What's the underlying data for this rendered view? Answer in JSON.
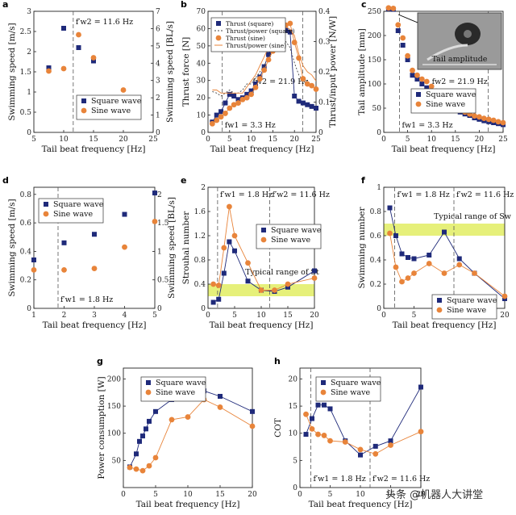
{
  "figure": {
    "watermark": "头条 @机器人大讲堂",
    "inset_label": "Tail amplitude"
  },
  "colors": {
    "square": "#1f2a7a",
    "sine": "#e8843a",
    "band": "#e6f07a",
    "axis": "#222222"
  },
  "chart_data": [
    {
      "panel": "a",
      "type": "scatter",
      "xlabel": "Tail beat frequency [Hz]",
      "ylabel": "Swimming speed [m/s]",
      "y2label": "Swimming speed [BL/s]",
      "xlim": [
        5,
        25
      ],
      "ylim": [
        0,
        3
      ],
      "y2lim": [
        0,
        7
      ],
      "xticks": [
        5,
        10,
        15,
        20,
        25
      ],
      "yticks": [
        0,
        0.5,
        1,
        1.5,
        2,
        2.5,
        3
      ],
      "y2ticks": [
        0,
        1,
        2,
        3,
        4,
        5,
        6,
        7
      ],
      "vlines": [
        {
          "x": 11.6,
          "label": "f′w2 = 11.6 Hz"
        }
      ],
      "legend": "bottom-right",
      "series": [
        {
          "name": "Square wave",
          "marker": "square",
          "x": [
            7.5,
            10,
            12.5,
            15,
            20
          ],
          "y": [
            1.6,
            2.58,
            2.1,
            1.77,
            0.7
          ]
        },
        {
          "name": "Sine wave",
          "marker": "circle",
          "x": [
            7.5,
            10,
            12.5,
            15,
            20
          ],
          "y": [
            1.52,
            1.58,
            2.42,
            1.85,
            1.05
          ]
        }
      ]
    },
    {
      "panel": "b",
      "type": "line",
      "xlabel": "Tail beat frequency [Hz]",
      "ylabel": "Thrust force [N]",
      "y2label": "Thrust/input power [N/W]",
      "xlim": [
        0,
        25
      ],
      "ylim": [
        0,
        70
      ],
      "y2lim": [
        0,
        0.4
      ],
      "xticks": [
        0,
        5,
        10,
        15,
        20,
        25
      ],
      "yticks": [
        0,
        10,
        20,
        30,
        40,
        50,
        60,
        70
      ],
      "y2ticks": [
        0,
        0.1,
        0.2,
        0.3,
        0.4
      ],
      "vlines": [
        {
          "x": 3.3,
          "label": "fw1 = 3.3 Hz"
        },
        {
          "x": 21.9,
          "label": "fw2 = 21.9 Hz"
        }
      ],
      "legend": "top-left",
      "series": [
        {
          "name": "Thrust (square)",
          "marker": "square",
          "x": [
            1,
            2,
            3,
            4,
            5,
            6,
            7,
            8,
            9,
            10,
            11,
            12,
            13,
            14,
            15,
            16,
            17,
            18,
            19,
            20,
            21,
            22,
            23,
            24,
            25
          ],
          "y": [
            6,
            10,
            12,
            17,
            22,
            21,
            19,
            20,
            22,
            24,
            28,
            32,
            38,
            45,
            50,
            53,
            56,
            59,
            58,
            21,
            18,
            17,
            16,
            15,
            14
          ]
        },
        {
          "name": "Thrust/power (square)",
          "marker": "none",
          "dash": "2,2",
          "axis": "right",
          "x": [
            1,
            2,
            3,
            4,
            5,
            6,
            7,
            8,
            9,
            10,
            11,
            12,
            13,
            14,
            15,
            16,
            17,
            18,
            19,
            20,
            21,
            22,
            23,
            24,
            25
          ],
          "y": [
            0.135,
            0.13,
            0.12,
            0.13,
            0.14,
            0.13,
            0.13,
            0.14,
            0.16,
            0.16,
            0.18,
            0.2,
            0.22,
            0.25,
            0.27,
            0.28,
            0.3,
            0.3,
            0.28,
            0.23,
            0.19,
            0.17,
            0.16,
            0.16,
            0.15
          ]
        },
        {
          "name": "Thrust (sine)",
          "marker": "circle",
          "x": [
            1,
            2,
            3,
            4,
            5,
            6,
            7,
            8,
            9,
            10,
            11,
            12,
            13,
            14,
            15,
            16,
            17,
            18,
            19,
            20,
            21,
            22,
            23,
            24,
            25
          ],
          "y": [
            5,
            7,
            9,
            11,
            14,
            16,
            17,
            19,
            20,
            22,
            26,
            31,
            36,
            42,
            47,
            54,
            58,
            62,
            63,
            52,
            43,
            31,
            28,
            27,
            25
          ]
        },
        {
          "name": "Thrust/power (sine)",
          "marker": "none",
          "dash": "",
          "axis": "right",
          "x": [
            1,
            2,
            3,
            4,
            5,
            6,
            7,
            8,
            9,
            10,
            11,
            12,
            13,
            14,
            15,
            16,
            17,
            18,
            19,
            20,
            21,
            22,
            23,
            24,
            25
          ],
          "y": [
            0.14,
            0.14,
            0.13,
            0.13,
            0.13,
            0.13,
            0.13,
            0.13,
            0.15,
            0.17,
            0.19,
            0.22,
            0.25,
            0.28,
            0.31,
            0.33,
            0.34,
            0.35,
            0.34,
            0.32,
            0.26,
            0.22,
            0.2,
            0.19,
            0.17
          ]
        }
      ]
    },
    {
      "panel": "c",
      "type": "scatter",
      "xlabel": "Tail beat frequency [Hz]",
      "ylabel": "Tail amplitude [mm]",
      "xlim": [
        0,
        25
      ],
      "ylim": [
        0,
        250
      ],
      "xticks": [
        0,
        5,
        10,
        15,
        20,
        25
      ],
      "yticks": [
        0,
        50,
        100,
        150,
        200,
        250
      ],
      "vlines": [
        {
          "x": 3.3,
          "label": "fw1 = 3.3 Hz"
        },
        {
          "x": 21.9,
          "label": "fw2 = 21.9 Hz"
        }
      ],
      "legend": "right",
      "series": [
        {
          "name": "Square wave",
          "marker": "square",
          "x": [
            1,
            2,
            3,
            4,
            5,
            6,
            7,
            8,
            9,
            10,
            11,
            12,
            13,
            14,
            15,
            16,
            17,
            18,
            19,
            20,
            21,
            22,
            23,
            24,
            25
          ],
          "y": [
            255,
            254,
            210,
            180,
            150,
            118,
            110,
            100,
            92,
            85,
            75,
            66,
            58,
            52,
            47,
            42,
            38,
            35,
            30,
            27,
            24,
            22,
            20,
            18,
            16
          ]
        },
        {
          "name": "Sine wave",
          "marker": "circle",
          "x": [
            1,
            2,
            3,
            4,
            5,
            6,
            7,
            8,
            9,
            10,
            11,
            12,
            13,
            14,
            15,
            16,
            17,
            18,
            19,
            20,
            21,
            22,
            23,
            24,
            25
          ],
          "y": [
            257,
            256,
            222,
            195,
            158,
            128,
            118,
            110,
            105,
            95,
            85,
            75,
            66,
            59,
            52,
            47,
            42,
            38,
            34,
            32,
            29,
            27,
            25,
            22,
            20
          ]
        }
      ]
    },
    {
      "panel": "d",
      "type": "scatter",
      "xlabel": "Tail beat frequency [Hz]",
      "ylabel": "Swimming speed [m/s]",
      "y2label": "Swimming speed [BL/s]",
      "xlim": [
        1,
        5
      ],
      "ylim": [
        0,
        0.85
      ],
      "y2lim": [
        0,
        2.125
      ],
      "xticks": [
        1,
        2,
        3,
        4,
        5
      ],
      "yticks": [
        0,
        0.2,
        0.4,
        0.6,
        0.8
      ],
      "y2ticks": [
        0,
        0.5,
        1.0,
        1.5,
        2.0
      ],
      "vlines": [
        {
          "x": 1.8,
          "label": "f′w1 = 1.8 Hz"
        }
      ],
      "legend": "top-left",
      "series": [
        {
          "name": "Square wave",
          "marker": "square",
          "x": [
            1,
            2,
            3,
            4,
            5
          ],
          "y": [
            0.34,
            0.46,
            0.52,
            0.66,
            0.81
          ]
        },
        {
          "name": "Sine wave",
          "marker": "circle",
          "x": [
            1,
            2,
            3,
            4,
            5
          ],
          "y": [
            0.27,
            0.27,
            0.28,
            0.43,
            0.61
          ]
        }
      ]
    },
    {
      "panel": "e",
      "type": "line",
      "xlabel": "Tail beat frequency [Hz]",
      "ylabel": "Strouhal number",
      "xlim": [
        0,
        20
      ],
      "ylim": [
        0,
        2.0
      ],
      "xticks": [
        0,
        5,
        10,
        15,
        20
      ],
      "yticks": [
        0,
        0.4,
        0.8,
        1.2,
        1.6,
        2.0
      ],
      "band": [
        0.2,
        0.4
      ],
      "band_label": "Typical range of St",
      "vlines": [
        {
          "x": 1.8,
          "label": "f′w1 = 1.8 Hz"
        },
        {
          "x": 11.6,
          "label": "f′w2 = 11.6 Hz"
        }
      ],
      "legend": "top-right",
      "series": [
        {
          "name": "Square wave",
          "marker": "square",
          "x": [
            1,
            2,
            3,
            4,
            5,
            7.5,
            10,
            12.5,
            15,
            20
          ],
          "y": [
            0.1,
            0.15,
            0.58,
            1.1,
            0.95,
            0.45,
            0.3,
            0.28,
            0.35,
            0.62
          ]
        },
        {
          "name": "Sine wave",
          "marker": "circle",
          "x": [
            1,
            2,
            3,
            4,
            5,
            7.5,
            10,
            12.5,
            15,
            20
          ],
          "y": [
            0.4,
            0.38,
            1.0,
            1.68,
            1.2,
            0.75,
            0.3,
            0.3,
            0.4,
            0.5
          ]
        }
      ]
    },
    {
      "panel": "f",
      "type": "line",
      "xlabel": "Tail beat frequency [Hz]",
      "ylabel": "Swimming number",
      "xlim": [
        0,
        20
      ],
      "ylim": [
        0,
        1.0
      ],
      "xticks": [
        0,
        5,
        10,
        15,
        20
      ],
      "yticks": [
        0,
        0.2,
        0.4,
        0.6,
        0.8,
        1.0
      ],
      "band": [
        0.6,
        0.7
      ],
      "band_label": "Typical range of Sw",
      "vlines": [
        {
          "x": 1.8,
          "label": "f′w1 = 1.8 Hz"
        },
        {
          "x": 11.6,
          "label": "f′w2 = 11.6 Hz"
        }
      ],
      "legend": "bottom-right",
      "series": [
        {
          "name": "Square wave",
          "marker": "square",
          "x": [
            1,
            2,
            3,
            4,
            5,
            7.5,
            10,
            12.5,
            15,
            20
          ],
          "y": [
            0.83,
            0.6,
            0.45,
            0.42,
            0.41,
            0.44,
            0.63,
            0.41,
            0.29,
            0.08
          ]
        },
        {
          "name": "Sine wave",
          "marker": "circle",
          "x": [
            1,
            2,
            3,
            4,
            5,
            7.5,
            10,
            12.5,
            15,
            20
          ],
          "y": [
            0.62,
            0.34,
            0.22,
            0.25,
            0.29,
            0.37,
            0.29,
            0.36,
            0.29,
            0.1
          ]
        }
      ]
    },
    {
      "panel": "g",
      "type": "line",
      "xlabel": "Tail beat frequency [Hz]",
      "ylabel": "Power consumption [W]",
      "xlim": [
        0,
        20
      ],
      "ylim": [
        0,
        220
      ],
      "xticks": [
        0,
        5,
        10,
        15,
        20
      ],
      "yticks": [
        50,
        100,
        150,
        200
      ],
      "vlines": [],
      "legend": "top-left",
      "series": [
        {
          "name": "Square wave",
          "marker": "square",
          "x": [
            1,
            2,
            2.5,
            3,
            3.5,
            4,
            5,
            7.5,
            10,
            12.5,
            15,
            20
          ],
          "y": [
            38,
            62,
            85,
            95,
            108,
            122,
            140,
            162,
            170,
            178,
            168,
            140
          ]
        },
        {
          "name": "Sine wave",
          "marker": "circle",
          "x": [
            1,
            2,
            3,
            4,
            5,
            7.5,
            10,
            12.5,
            15,
            20
          ],
          "y": [
            37,
            34,
            31,
            40,
            55,
            125,
            130,
            162,
            148,
            113
          ]
        }
      ]
    },
    {
      "panel": "h",
      "type": "line",
      "xlabel": "Tail beat frequency [Hz]",
      "ylabel": "COT",
      "xlim": [
        0,
        20
      ],
      "ylim": [
        0,
        22
      ],
      "xticks": [
        0,
        5,
        10,
        15,
        20
      ],
      "yticks": [
        0,
        5,
        10,
        15,
        20
      ],
      "vlines": [
        {
          "x": 1.8,
          "label": "f′w1 = 1.8 Hz"
        },
        {
          "x": 11.6,
          "label": "f′w2 = 11.6 Hz"
        }
      ],
      "legend": "top-left",
      "series": [
        {
          "name": "Square wave",
          "marker": "square",
          "x": [
            1,
            2,
            3,
            4,
            5,
            7.5,
            10,
            12.5,
            15,
            20
          ],
          "y": [
            9.8,
            12.7,
            15.2,
            15.2,
            14.5,
            8.6,
            6.0,
            7.6,
            8.6,
            18.5
          ]
        },
        {
          "name": "Sine wave",
          "marker": "circle",
          "x": [
            1,
            2,
            3,
            4,
            5,
            7.5,
            10,
            12.5,
            15,
            20
          ],
          "y": [
            13.5,
            10.8,
            9.8,
            9.6,
            8.6,
            8.4,
            7.0,
            6.2,
            7.8,
            10.3
          ]
        }
      ]
    }
  ]
}
